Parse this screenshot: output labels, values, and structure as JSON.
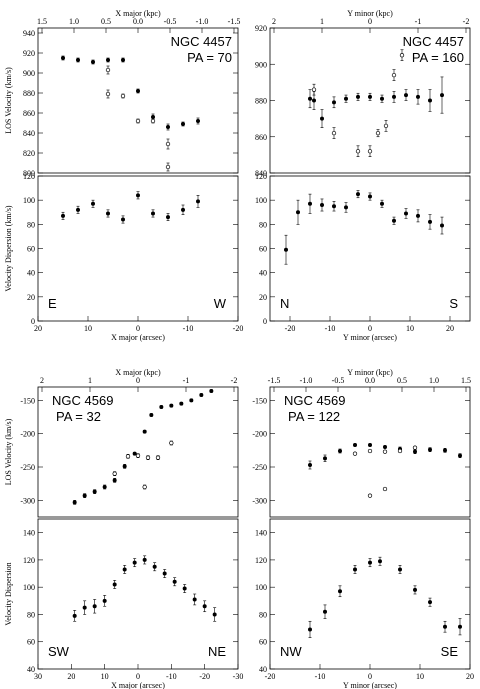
{
  "chart_data": [
    {
      "type": "scatter",
      "panel_role": "velocity",
      "galaxy": "NGC 4457",
      "pa_label": "PA = 70",
      "xlabel": "",
      "ylabel": "LOS Velocity (km/s)",
      "top_axis_label": "X major (kpc)",
      "top_ticks": [
        "1.5",
        "1.0",
        "0.5",
        "0.0",
        "-0.5",
        "-1.0",
        "-1.5"
      ],
      "xlim": [
        20,
        -20
      ],
      "ylim": [
        800,
        945
      ],
      "yticks": [
        800,
        820,
        840,
        860,
        880,
        900,
        920,
        940
      ],
      "corner_left": "",
      "corner_right": "",
      "series": [
        {
          "marker": "filled",
          "points": [
            [
              15,
              915
            ],
            [
              12,
              913
            ],
            [
              9,
              911
            ],
            [
              6,
              913
            ],
            [
              3,
              913
            ],
            [
              0,
              882
            ],
            [
              -3,
              856
            ],
            [
              -6,
              846
            ],
            [
              -9,
              849
            ],
            [
              -12,
              852
            ]
          ],
          "err": [
            2,
            2,
            2,
            2,
            2,
            2,
            3,
            3,
            2,
            3
          ]
        },
        {
          "marker": "open",
          "points": [
            [
              6,
              903
            ],
            [
              6,
              879
            ],
            [
              3,
              877
            ],
            [
              -6,
              829
            ],
            [
              -6,
              806
            ],
            [
              -3,
              852
            ],
            [
              0,
              852
            ]
          ],
          "err": [
            4,
            4,
            2,
            5,
            4,
            2,
            2
          ]
        }
      ]
    },
    {
      "type": "scatter",
      "panel_role": "velocity",
      "galaxy": "NGC 4457",
      "pa_label": "PA = 160",
      "xlabel": "",
      "ylabel": "",
      "top_axis_label": "Y minor (kpc)",
      "top_ticks": [
        "2",
        "1",
        "0",
        "-1",
        "-2"
      ],
      "xlim": [
        -25,
        25
      ],
      "ylim": [
        840,
        920
      ],
      "yticks": [
        840,
        860,
        880,
        900,
        920
      ],
      "corner_left": "",
      "corner_right": "",
      "series": [
        {
          "marker": "filled",
          "points": [
            [
              -15,
              881
            ],
            [
              -14,
              880
            ],
            [
              -12,
              870
            ],
            [
              -9,
              879
            ],
            [
              -6,
              881
            ],
            [
              -3,
              882
            ],
            [
              0,
              882
            ],
            [
              3,
              881
            ],
            [
              6,
              882
            ],
            [
              9,
              883
            ],
            [
              12,
              882
            ],
            [
              15,
              880
            ],
            [
              18,
              883
            ]
          ],
          "err": [
            5,
            5,
            5,
            3,
            2,
            2,
            2,
            2,
            3,
            3,
            4,
            6,
            10
          ]
        },
        {
          "marker": "open",
          "points": [
            [
              -14,
              886
            ],
            [
              -9,
              862
            ],
            [
              -3,
              852
            ],
            [
              0,
              852
            ],
            [
              2,
              862
            ],
            [
              4,
              866
            ],
            [
              6,
              894
            ],
            [
              8,
              905
            ]
          ],
          "err": [
            3,
            3,
            3,
            3,
            2,
            3,
            3,
            3
          ]
        }
      ]
    },
    {
      "type": "scatter",
      "panel_role": "dispersion",
      "galaxy": "",
      "pa_label": "",
      "xlabel": "X major (arcsec)",
      "ylabel": "Velocity Dispersion (km/s)",
      "xlim": [
        20,
        -20
      ],
      "ylim": [
        0,
        120
      ],
      "yticks": [
        0,
        20,
        40,
        60,
        80,
        100,
        120
      ],
      "xticks": [
        20,
        10,
        0,
        -10,
        -20
      ],
      "corner_left": "E",
      "corner_right": "W",
      "series": [
        {
          "marker": "filled",
          "points": [
            [
              15,
              87
            ],
            [
              12,
              92
            ],
            [
              9,
              97
            ],
            [
              6,
              89
            ],
            [
              3,
              84
            ],
            [
              0,
              104
            ],
            [
              -3,
              89
            ],
            [
              -6,
              86
            ],
            [
              -9,
              92
            ],
            [
              -12,
              99
            ]
          ],
          "err": [
            3,
            3,
            3,
            3,
            3,
            3,
            3,
            3,
            4,
            5
          ]
        }
      ]
    },
    {
      "type": "scatter",
      "panel_role": "dispersion",
      "galaxy": "",
      "pa_label": "",
      "xlabel": "Y minor (arcsec)",
      "ylabel": "",
      "xlim": [
        -25,
        25
      ],
      "ylim": [
        0,
        120
      ],
      "yticks": [
        0,
        20,
        40,
        60,
        80,
        100,
        120
      ],
      "xticks": [
        -20,
        -10,
        0,
        10,
        20
      ],
      "corner_left": "N",
      "corner_right": "S",
      "series": [
        {
          "marker": "filled",
          "points": [
            [
              -21,
              59
            ],
            [
              -18,
              90
            ],
            [
              -15,
              97
            ],
            [
              -12,
              96
            ],
            [
              -9,
              95
            ],
            [
              -6,
              94
            ],
            [
              -3,
              105
            ],
            [
              0,
              103
            ],
            [
              3,
              97
            ],
            [
              6,
              83
            ],
            [
              9,
              89
            ],
            [
              12,
              87
            ],
            [
              15,
              82
            ],
            [
              18,
              79
            ]
          ],
          "err": [
            12,
            10,
            8,
            5,
            4,
            4,
            3,
            3,
            3,
            3,
            4,
            5,
            6,
            7
          ]
        }
      ]
    },
    {
      "type": "scatter",
      "panel_role": "velocity",
      "galaxy": "NGC 4569",
      "pa_label": "PA = 32",
      "xlabel": "",
      "ylabel": "LOS Velocity (km/s)",
      "top_axis_label": "X major (kpc)",
      "top_ticks": [
        "2",
        "1",
        "0",
        "-1",
        "-2"
      ],
      "xlim": [
        30,
        -30
      ],
      "ylim": [
        -325,
        -130
      ],
      "yticks": [
        -300,
        -250,
        -200,
        -150
      ],
      "corner_left": "",
      "corner_right": "",
      "series": [
        {
          "marker": "filled",
          "points": [
            [
              19,
              -303
            ],
            [
              16,
              -293
            ],
            [
              13,
              -287
            ],
            [
              10,
              -280
            ],
            [
              7,
              -270
            ],
            [
              4,
              -249
            ],
            [
              1,
              -230
            ],
            [
              -2,
              -197
            ],
            [
              -4,
              -172
            ],
            [
              -7,
              -160
            ],
            [
              -10,
              -158
            ],
            [
              -13,
              -155
            ],
            [
              -16,
              -150
            ],
            [
              -19,
              -142
            ],
            [
              -22,
              -136
            ]
          ],
          "err": [
            3,
            3,
            3,
            3,
            3,
            3,
            2,
            2,
            2,
            2,
            2,
            2,
            2,
            2,
            2
          ]
        },
        {
          "marker": "open",
          "points": [
            [
              7,
              -260
            ],
            [
              3,
              -234
            ],
            [
              0,
              -233
            ],
            [
              -3,
              -236
            ],
            [
              -6,
              -236
            ],
            [
              -2,
              -280
            ],
            [
              -10,
              -214
            ]
          ],
          "err": [
            3,
            3,
            3,
            3,
            3,
            3,
            3
          ]
        }
      ]
    },
    {
      "type": "scatter",
      "panel_role": "velocity",
      "galaxy": "NGC 4569",
      "pa_label": "PA = 122",
      "xlabel": "",
      "ylabel": "",
      "top_axis_label": "Y minor (kpc)",
      "top_ticks": [
        "-1.5",
        "-1.0",
        "-0.5",
        "0.0",
        "0.5",
        "1.0",
        "1.5"
      ],
      "xlim": [
        -20,
        20
      ],
      "ylim": [
        -325,
        -130
      ],
      "yticks": [
        -300,
        -250,
        -200,
        -150
      ],
      "corner_left": "",
      "corner_right": "",
      "series": [
        {
          "marker": "filled",
          "points": [
            [
              -12,
              -247
            ],
            [
              -9,
              -237
            ],
            [
              -6,
              -226
            ],
            [
              -3,
              -217
            ],
            [
              0,
              -217
            ],
            [
              3,
              -220
            ],
            [
              6,
              -223
            ],
            [
              9,
              -227
            ],
            [
              12,
              -224
            ],
            [
              15,
              -225
            ],
            [
              18,
              -233
            ]
          ],
          "err": [
            6,
            5,
            3,
            2,
            2,
            2,
            3,
            3,
            3,
            3,
            3
          ]
        },
        {
          "marker": "open",
          "points": [
            [
              0,
              -293
            ],
            [
              3,
              -283
            ],
            [
              3,
              -227
            ],
            [
              6,
              -226
            ],
            [
              9,
              -221
            ],
            [
              0,
              -226
            ],
            [
              -3,
              -230
            ]
          ],
          "err": [
            2,
            2,
            2,
            2,
            2,
            2,
            2
          ]
        }
      ]
    },
    {
      "type": "scatter",
      "panel_role": "dispersion",
      "galaxy": "",
      "pa_label": "",
      "xlabel": "X major (arcsec)",
      "ylabel": "Velocity Dispersion",
      "xlim": [
        30,
        -30
      ],
      "ylim": [
        40,
        150
      ],
      "yticks": [
        40,
        60,
        80,
        100,
        120,
        140
      ],
      "xticks": [
        30,
        20,
        10,
        0,
        -10,
        -20,
        -30
      ],
      "corner_left": "SW",
      "corner_right": "NE",
      "series": [
        {
          "marker": "filled",
          "points": [
            [
              19,
              79
            ],
            [
              16,
              85
            ],
            [
              13,
              86
            ],
            [
              10,
              90
            ],
            [
              7,
              102
            ],
            [
              4,
              113
            ],
            [
              1,
              118
            ],
            [
              -2,
              120
            ],
            [
              -5,
              115
            ],
            [
              -8,
              110
            ],
            [
              -11,
              104
            ],
            [
              -14,
              99
            ],
            [
              -17,
              91
            ],
            [
              -20,
              86
            ],
            [
              -23,
              80
            ]
          ],
          "err": [
            4,
            5,
            5,
            4,
            3,
            3,
            3,
            3,
            3,
            3,
            3,
            3,
            4,
            4,
            5
          ]
        }
      ]
    },
    {
      "type": "scatter",
      "panel_role": "dispersion",
      "galaxy": "",
      "pa_label": "",
      "xlabel": "Y minor (arcsec)",
      "ylabel": "",
      "xlim": [
        -20,
        20
      ],
      "ylim": [
        40,
        150
      ],
      "yticks": [
        40,
        60,
        80,
        100,
        120,
        140
      ],
      "xticks": [
        -20,
        -10,
        0,
        10,
        20
      ],
      "corner_left": "NW",
      "corner_right": "SE",
      "series": [
        {
          "marker": "filled",
          "points": [
            [
              -12,
              69
            ],
            [
              -9,
              82
            ],
            [
              -6,
              97
            ],
            [
              -3,
              113
            ],
            [
              0,
              118
            ],
            [
              2,
              119
            ],
            [
              6,
              113
            ],
            [
              9,
              98
            ],
            [
              12,
              89
            ],
            [
              15,
              71
            ],
            [
              18,
              71
            ]
          ],
          "err": [
            6,
            5,
            4,
            3,
            3,
            3,
            3,
            3,
            3,
            4,
            6
          ]
        }
      ]
    }
  ]
}
